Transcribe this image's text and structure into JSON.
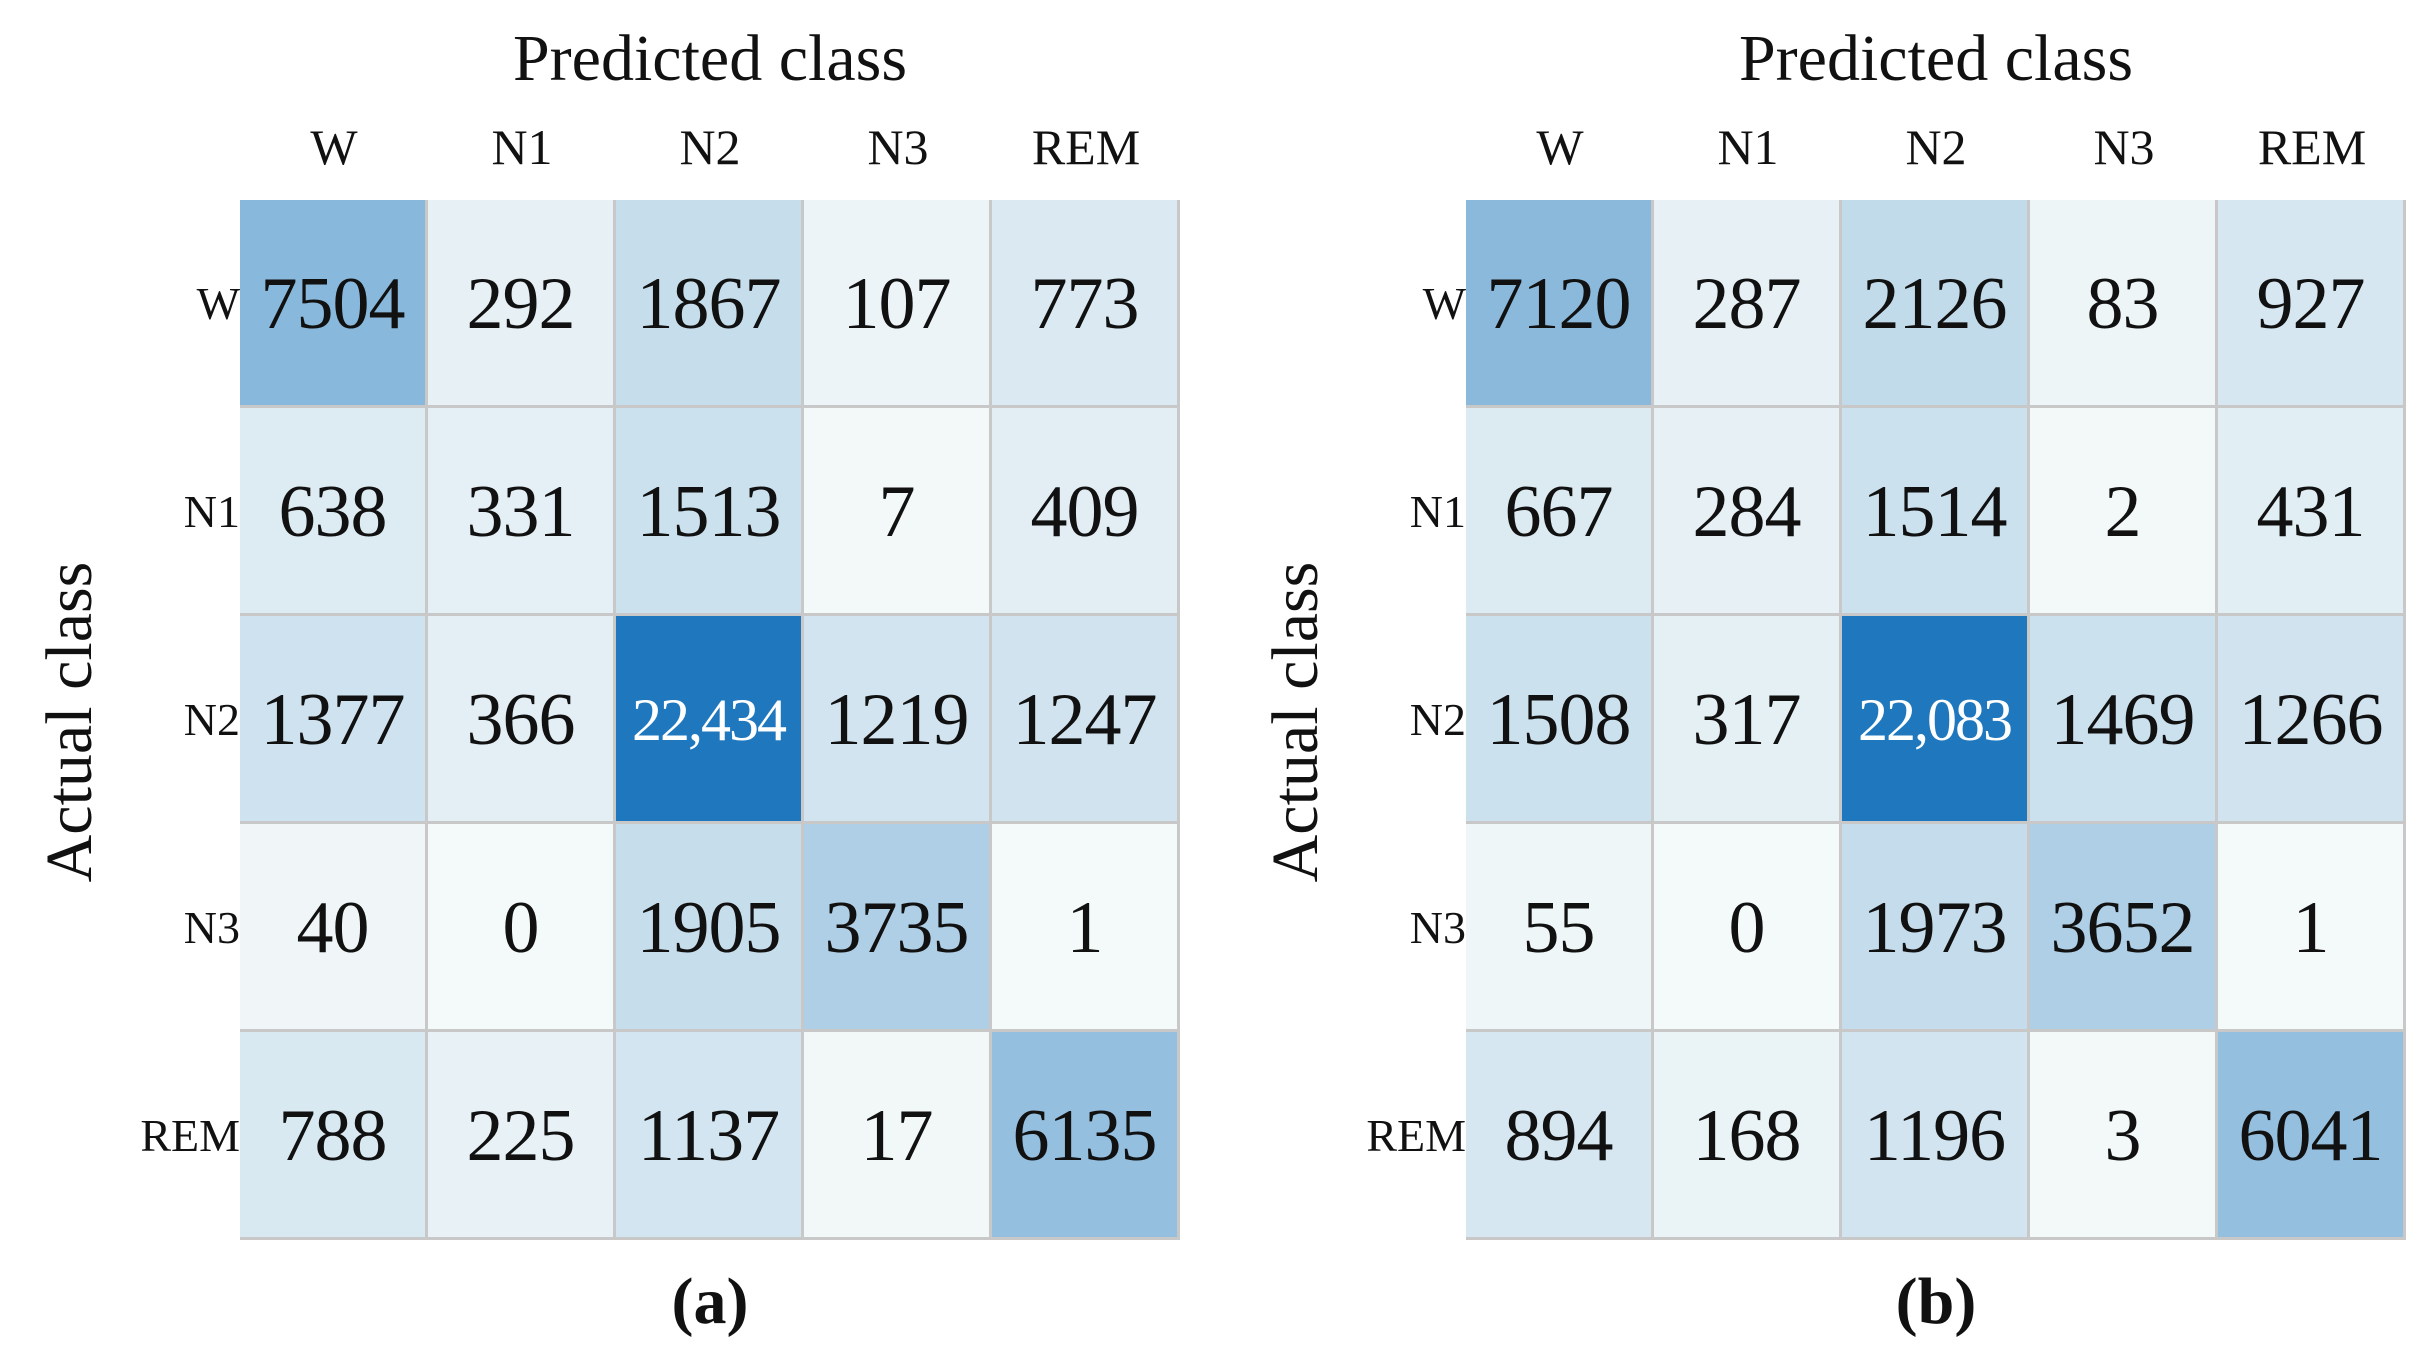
{
  "chart_data": [
    {
      "type": "heatmap",
      "panel_label": "(a)",
      "xlabel": "Predicted class",
      "ylabel": "Actual class",
      "x_categories": [
        "W",
        "N1",
        "N2",
        "N3",
        "REM"
      ],
      "y_categories": [
        "W",
        "N1",
        "N2",
        "N3",
        "REM"
      ],
      "cell_labels": [
        [
          "7504",
          "292",
          "1867",
          "107",
          "773"
        ],
        [
          "638",
          "331",
          "1513",
          "7",
          "409"
        ],
        [
          "1377",
          "366",
          "22,434",
          "1219",
          "1247"
        ],
        [
          "40",
          "0",
          "1905",
          "3735",
          "1"
        ],
        [
          "788",
          "225",
          "1137",
          "17",
          "6135"
        ]
      ],
      "values": [
        [
          7504,
          292,
          1867,
          107,
          773
        ],
        [
          638,
          331,
          1513,
          7,
          409
        ],
        [
          1377,
          366,
          22434,
          1219,
          1247
        ],
        [
          40,
          0,
          1905,
          3735,
          1
        ],
        [
          788,
          225,
          1137,
          17,
          6135
        ]
      ],
      "colormap": "Blues",
      "colors": {
        "low": "#f4f9f9",
        "high": "#1f78be",
        "text_dark": "#111111",
        "text_light": "#ffffff"
      },
      "grid": true,
      "legend": "none"
    },
    {
      "type": "heatmap",
      "panel_label": "(b)",
      "xlabel": "Predicted class",
      "ylabel": "Actual class",
      "x_categories": [
        "W",
        "N1",
        "N2",
        "N3",
        "REM"
      ],
      "y_categories": [
        "W",
        "N1",
        "N2",
        "N3",
        "REM"
      ],
      "cell_labels": [
        [
          "7120",
          "287",
          "2126",
          "83",
          "927"
        ],
        [
          "667",
          "284",
          "1514",
          "2",
          "431"
        ],
        [
          "1508",
          "317",
          "22,083",
          "1469",
          "1266"
        ],
        [
          "55",
          "0",
          "1973",
          "3652",
          "1"
        ],
        [
          "894",
          "168",
          "1196",
          "3",
          "6041"
        ]
      ],
      "values": [
        [
          7120,
          287,
          2126,
          83,
          927
        ],
        [
          667,
          284,
          1514,
          2,
          431
        ],
        [
          1508,
          317,
          22083,
          1469,
          1266
        ],
        [
          55,
          0,
          1973,
          3652,
          1
        ],
        [
          894,
          168,
          1196,
          3,
          6041
        ]
      ],
      "colormap": "Blues",
      "colors": {
        "low": "#f4f9f9",
        "high": "#1f78be",
        "text_dark": "#111111",
        "text_light": "#ffffff"
      },
      "grid": true,
      "legend": "none"
    }
  ]
}
